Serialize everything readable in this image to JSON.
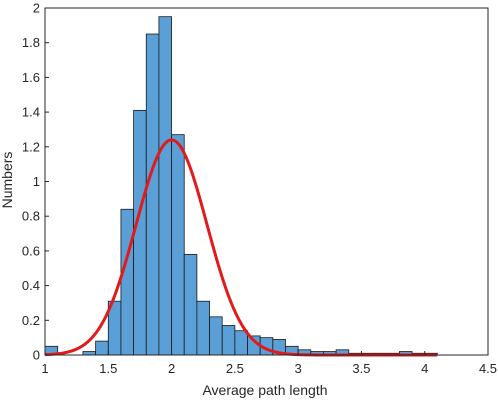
{
  "chart_data": {
    "type": "bar",
    "title": "",
    "xlabel": "Average path length",
    "ylabel": "Numbers",
    "xlim": [
      1,
      4.5
    ],
    "ylim": [
      0,
      2
    ],
    "grid": false,
    "legend": "none",
    "xticks": [
      1,
      1.5,
      2,
      2.5,
      3,
      3.5,
      4,
      4.5
    ],
    "xtick_labels": [
      "1",
      "1.5",
      "2",
      "2.5",
      "3",
      "3.5",
      "4",
      "4.5"
    ],
    "yticks": [
      0,
      0.2,
      0.4,
      0.6,
      0.8,
      1,
      1.2,
      1.4,
      1.6,
      1.8,
      2
    ],
    "ytick_labels": [
      "0",
      "0.2",
      "0.4",
      "0.6",
      "0.8",
      "1",
      "1.2",
      "1.4",
      "1.6",
      "1.8",
      "2"
    ],
    "bin_width": 0.1,
    "histogram": {
      "bin_starts": [
        1.0,
        1.3,
        1.4,
        1.5,
        1.6,
        1.7,
        1.8,
        1.9,
        2.0,
        2.1,
        2.2,
        2.3,
        2.4,
        2.5,
        2.6,
        2.7,
        2.8,
        2.9,
        3.0,
        3.1,
        3.2,
        3.3,
        3.4,
        3.5,
        3.6,
        3.7,
        3.8,
        3.9,
        4.0
      ],
      "values": [
        0.05,
        0.02,
        0.08,
        0.31,
        0.84,
        1.41,
        1.85,
        1.95,
        1.27,
        0.58,
        0.31,
        0.22,
        0.17,
        0.14,
        0.11,
        0.1,
        0.09,
        0.05,
        0.03,
        0.02,
        0.02,
        0.03,
        0.01,
        0.01,
        0.01,
        0.01,
        0.02,
        0.01,
        0.01
      ]
    },
    "fit_curve": {
      "type": "normal",
      "mean": 2.0,
      "sd": 0.28,
      "peak": 1.24,
      "x_range": [
        1.0,
        4.1
      ]
    },
    "colors": {
      "bar_fill": "#5a9fd6",
      "bar_edge": "#1a1a1a",
      "curve": "#e31a1c",
      "axis": "#262626"
    }
  }
}
